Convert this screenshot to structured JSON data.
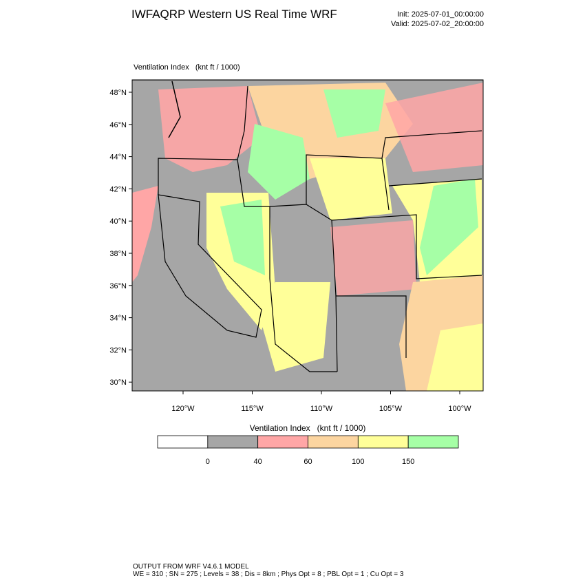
{
  "header": {
    "title": "IWFAQRP Western US Real Time WRF",
    "init": "Init: 2025-07-01_00:00:00",
    "valid": "Valid: 2025-07-02_20:00:00"
  },
  "map": {
    "label": "Ventilation Index   (knt ft / 1000)",
    "lat_ticks": [
      "48°N",
      "46°N",
      "44°N",
      "42°N",
      "40°N",
      "38°N",
      "36°N",
      "34°N",
      "32°N",
      "30°N"
    ],
    "lon_ticks": [
      "120°W",
      "115°W",
      "110°W",
      "105°W",
      "100°W"
    ]
  },
  "colorbar": {
    "title": "Ventilation Index   (knt ft / 1000)",
    "colors": [
      "#ffffff",
      "#a6a6a6",
      "#ffa6a6",
      "#fcd5a0",
      "#ffff99",
      "#a6ffa6"
    ],
    "labels": [
      "0",
      "40",
      "60",
      "100",
      "150"
    ]
  },
  "footer": {
    "line1": "OUTPUT FROM WRF V4.6.1 MODEL",
    "line2": "WE = 310 ; SN = 275 ; Levels = 38 ; Dis = 8km ; Phys Opt = 8 ; PBL Opt = 1 ; Cu Opt = 3"
  }
}
